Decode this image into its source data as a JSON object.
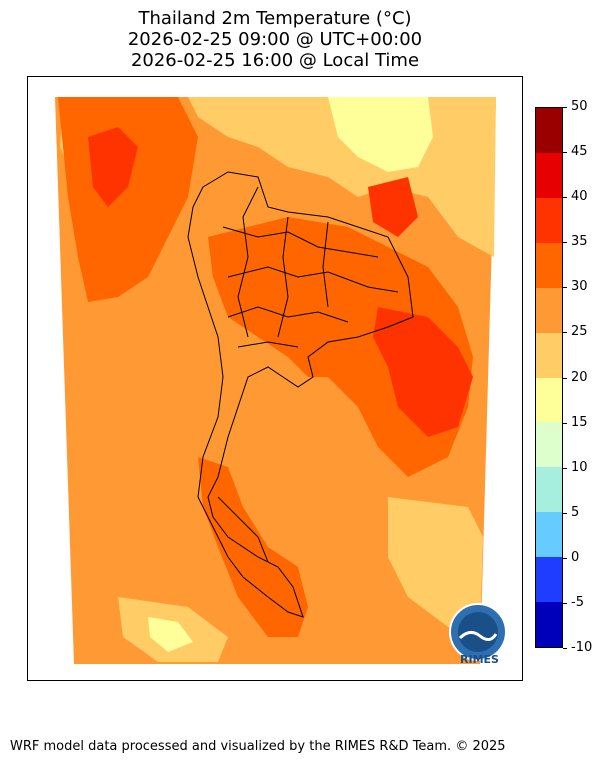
{
  "title": {
    "line1": "Thailand 2m Temperature (°C)",
    "line2": "2026-02-25 09:00 @ UTC+00:00",
    "line3": "2026-02-25 16:00 @ Local Time"
  },
  "colorbar": {
    "ticks": [
      "50",
      "45",
      "40",
      "35",
      "30",
      "25",
      "20",
      "15",
      "10",
      "5",
      "0",
      "-5",
      "-10"
    ],
    "bins": [
      {
        "range": "45-50",
        "color": "#9a0000"
      },
      {
        "range": "40-45",
        "color": "#e60000"
      },
      {
        "range": "35-40",
        "color": "#ff3300"
      },
      {
        "range": "30-35",
        "color": "#ff6600"
      },
      {
        "range": "25-30",
        "color": "#ff9933"
      },
      {
        "range": "20-25",
        "color": "#ffcc66"
      },
      {
        "range": "15-20",
        "color": "#ffff99"
      },
      {
        "range": "10-15",
        "color": "#ddffcc"
      },
      {
        "range": "5-10",
        "color": "#a6eedd"
      },
      {
        "range": "0-5",
        "color": "#66ccff"
      },
      {
        "range": "-5-0",
        "color": "#1f3dff"
      },
      {
        "range": "-10--5",
        "color": "#0000bb"
      }
    ]
  },
  "logo": {
    "text": "RIMES"
  },
  "footer": "WRF model data processed and visualized by the RIMES R&D Team. © 2025"
}
